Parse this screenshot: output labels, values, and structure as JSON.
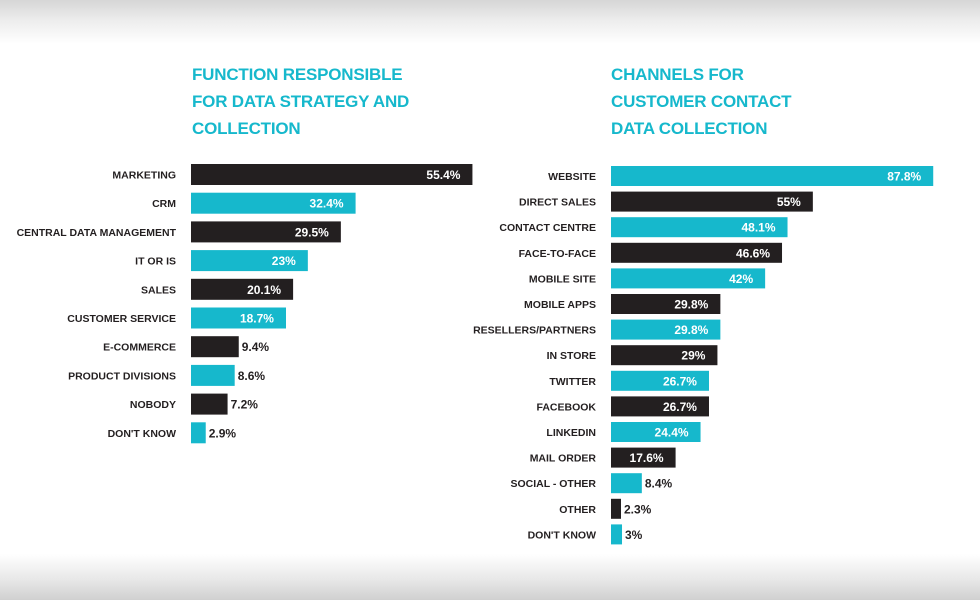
{
  "colors": {
    "cyan": "#16b8cc",
    "dark": "#231f20",
    "label_text": "#231f20",
    "value_text_inside": "#ffffff",
    "title": "#16b8cc"
  },
  "chart_data": [
    {
      "type": "bar",
      "orientation": "horizontal",
      "title": "FUNCTION RESPONSIBLE FOR DATA STRATEGY AND COLLECTION",
      "title_lines": [
        "FUNCTION RESPONSIBLE",
        "FOR DATA STRATEGY AND",
        "COLLECTION"
      ],
      "categories": [
        "MARKETING",
        "CRM",
        "CENTRAL DATA MANAGEMENT",
        "IT OR IS",
        "SALES",
        "CUSTOMER SERVICE",
        "E-COMMERCE",
        "PRODUCT DIVISIONS",
        "NOBODY",
        "DON'T KNOW"
      ],
      "values": [
        55.4,
        32.4,
        29.5,
        23,
        20.1,
        18.7,
        9.4,
        8.6,
        7.2,
        2.9
      ],
      "value_labels": [
        "55.4%",
        "32.4%",
        "29.5%",
        "23%",
        "20.1%",
        "18.7%",
        "9.4%",
        "8.6%",
        "7.2%",
        "2.9%"
      ],
      "bar_colors": [
        "dark",
        "cyan",
        "dark",
        "cyan",
        "dark",
        "cyan",
        "dark",
        "cyan",
        "dark",
        "cyan"
      ],
      "unit": "%",
      "xlim": [
        0,
        100
      ],
      "grid": false,
      "legend": "none"
    },
    {
      "type": "bar",
      "orientation": "horizontal",
      "title": "CHANNELS FOR CUSTOMER CONTACT DATA COLLECTION",
      "title_lines": [
        "CHANNELS FOR",
        "CUSTOMER CONTACT",
        "DATA COLLECTION"
      ],
      "categories": [
        "WEBSITE",
        "DIRECT SALES",
        "CONTACT CENTRE",
        "FACE-TO-FACE",
        "MOBILE SITE",
        "MOBILE APPS",
        "RESELLERS/PARTNERS",
        "IN STORE",
        "TWITTER",
        "FACEBOOK",
        "LINKEDIN",
        "MAIL ORDER",
        "SOCIAL - OTHER",
        "OTHER",
        "DON'T KNOW"
      ],
      "values": [
        87.8,
        55,
        48.1,
        46.6,
        42,
        29.8,
        29.8,
        29,
        26.7,
        26.7,
        24.4,
        17.6,
        8.4,
        2.3,
        3
      ],
      "value_labels": [
        "87.8%",
        "55%",
        "48.1%",
        "46.6%",
        "42%",
        "29.8%",
        "29.8%",
        "29%",
        "26.7%",
        "26.7%",
        "24.4%",
        "17.6%",
        "8.4%",
        "2.3%",
        "3%"
      ],
      "bar_colors": [
        "cyan",
        "dark",
        "cyan",
        "dark",
        "cyan",
        "dark",
        "cyan",
        "dark",
        "cyan",
        "dark",
        "cyan",
        "dark",
        "cyan",
        "dark",
        "cyan"
      ],
      "unit": "%",
      "xlim": [
        0,
        100
      ],
      "grid": false,
      "legend": "none"
    }
  ]
}
